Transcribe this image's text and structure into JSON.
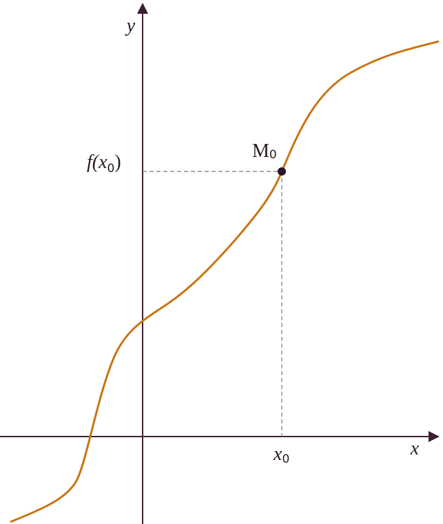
{
  "axes": {
    "x_label": "x",
    "y_label": "y"
  },
  "point": {
    "main": "M",
    "sub": "0"
  },
  "x_marker": {
    "main": "x",
    "sub": "0"
  },
  "y_marker": {
    "prefix": "f(",
    "main": "x",
    "sub": "0",
    "suffix": ")"
  }
}
